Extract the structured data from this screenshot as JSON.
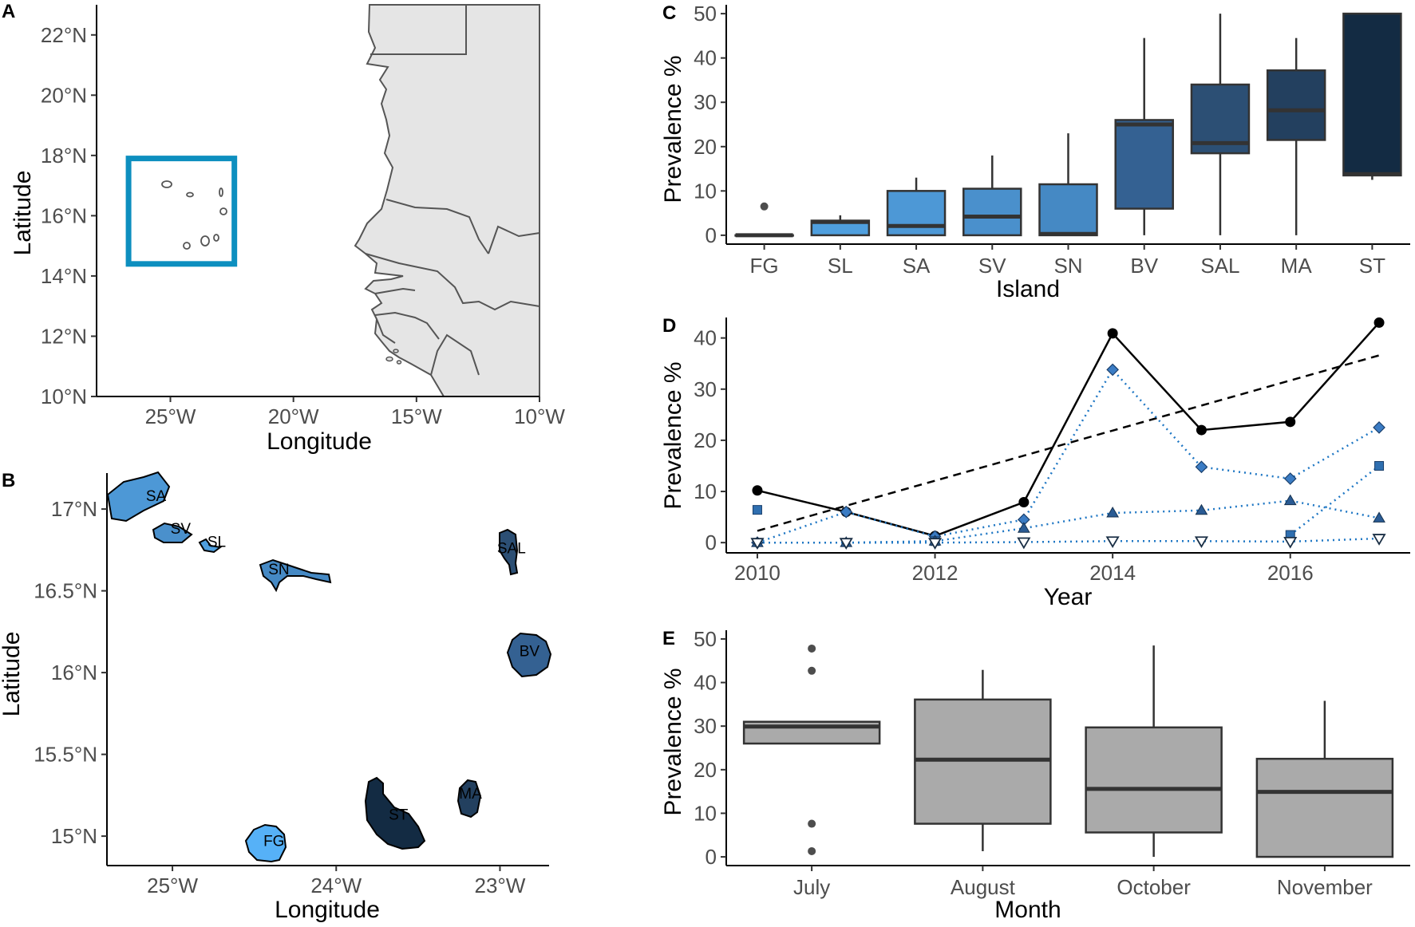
{
  "colors": {
    "FG": "#56b1f7",
    "SL": "#4f9fde",
    "SA": "#4d98d6",
    "SV": "#4a90cc",
    "SN": "#4589c4",
    "BV": "#346192",
    "SAL": "#2c4f74",
    "MA": "#23405f",
    "ST": "#132b43",
    "land": "#e5e5e5",
    "border": "#555555",
    "box_frame": "#0d8fbf",
    "month_fill": "#aaaaaa",
    "trend_line": "#000000",
    "series_blue": "#1f77c4"
  },
  "chart_data": [
    {
      "panel": "A",
      "type": "map",
      "xlabel": "Longitude",
      "ylabel": "Latitude",
      "xlim": [
        -28,
        -10
      ],
      "ylim": [
        10,
        23
      ],
      "xticks": [
        {
          "v": -25,
          "label": "25°W"
        },
        {
          "v": -20,
          "label": "20°W"
        },
        {
          "v": -15,
          "label": "15°W"
        },
        {
          "v": -10,
          "label": "10°W"
        }
      ],
      "yticks": [
        {
          "v": 10,
          "label": "10°N"
        },
        {
          "v": 12,
          "label": "12°N"
        },
        {
          "v": 14,
          "label": "14°N"
        },
        {
          "v": 16,
          "label": "16°N"
        },
        {
          "v": 18,
          "label": "18°N"
        },
        {
          "v": 20,
          "label": "20°N"
        },
        {
          "v": 22,
          "label": "22°N"
        }
      ],
      "highlight_box": {
        "lon": [
          -26.7,
          -22.4
        ],
        "lat": [
          14.4,
          17.9
        ]
      }
    },
    {
      "panel": "B",
      "type": "map",
      "xlabel": "Longitude",
      "ylabel": "Latitude",
      "xlim": [
        -25.4,
        -22.7
      ],
      "ylim": [
        14.82,
        17.22
      ],
      "xticks": [
        {
          "v": -25,
          "label": "25°W"
        },
        {
          "v": -24,
          "label": "24°W"
        },
        {
          "v": -23,
          "label": "23°W"
        }
      ],
      "yticks": [
        {
          "v": 15,
          "label": "15°N"
        },
        {
          "v": 15.5,
          "label": "15.5°N"
        },
        {
          "v": 16,
          "label": "16°N"
        },
        {
          "v": 16.5,
          "label": "16.5°N"
        },
        {
          "v": 17,
          "label": "17°N"
        }
      ],
      "islands": [
        {
          "code": "SA",
          "label": "SA",
          "lon": -25.1,
          "lat": 17.05
        },
        {
          "code": "SV",
          "label": "SV",
          "lon": -24.95,
          "lat": 16.85
        },
        {
          "code": "SL",
          "label": "SL",
          "lon": -24.73,
          "lat": 16.77
        },
        {
          "code": "SN",
          "label": "SN",
          "lon": -24.35,
          "lat": 16.6
        },
        {
          "code": "SAL",
          "label": "SAL",
          "lon": -22.93,
          "lat": 16.73
        },
        {
          "code": "BV",
          "label": "BV",
          "lon": -22.82,
          "lat": 16.1
        },
        {
          "code": "MA",
          "label": "MA",
          "lon": -23.18,
          "lat": 15.23
        },
        {
          "code": "ST",
          "label": "ST",
          "lon": -23.62,
          "lat": 15.1
        },
        {
          "code": "FG",
          "label": "FG",
          "lon": -24.38,
          "lat": 14.94
        }
      ]
    },
    {
      "panel": "C",
      "type": "boxplot",
      "xlabel": "Island",
      "ylabel": "Prevalence %",
      "ylim": [
        -2,
        52
      ],
      "yticks": [
        0,
        10,
        20,
        30,
        40,
        50
      ],
      "categories": [
        "FG",
        "SL",
        "SA",
        "SV",
        "SN",
        "BV",
        "SAL",
        "MA",
        "ST"
      ],
      "boxes": [
        {
          "min": 0,
          "q1": 0,
          "median": 0,
          "q3": 0,
          "max": 0,
          "outliers": [
            6.5
          ]
        },
        {
          "min": 0,
          "q1": 0,
          "median": 3,
          "q3": 3.3,
          "max": 4.5,
          "outliers": []
        },
        {
          "min": 0,
          "q1": 0,
          "median": 2.1,
          "q3": 10,
          "max": 13,
          "outliers": []
        },
        {
          "min": 0,
          "q1": 0,
          "median": 4.2,
          "q3": 10.5,
          "max": 18,
          "outliers": []
        },
        {
          "min": 0,
          "q1": 0,
          "median": 0.3,
          "q3": 11.5,
          "max": 23,
          "outliers": []
        },
        {
          "min": 0,
          "q1": 6,
          "median": 25,
          "q3": 26,
          "max": 44.5,
          "outliers": []
        },
        {
          "min": 0,
          "q1": 18.5,
          "median": 20.8,
          "q3": 34,
          "max": 50,
          "outliers": []
        },
        {
          "min": 0,
          "q1": 21.5,
          "median": 28.2,
          "q3": 37.2,
          "max": 44.5,
          "outliers": []
        },
        {
          "min": 12.5,
          "q1": 13.5,
          "median": 13.8,
          "q3": 50,
          "max": 50,
          "outliers": []
        }
      ]
    },
    {
      "panel": "D",
      "type": "line",
      "xlabel": "Year",
      "ylabel": "Prevalence %",
      "xlim": [
        2009.65,
        2017.35
      ],
      "ylim": [
        -2,
        44
      ],
      "xticks": [
        2010,
        2012,
        2014,
        2016
      ],
      "yticks": [
        0,
        10,
        20,
        30,
        40
      ],
      "series": [
        {
          "name": "overall",
          "style": "solid",
          "marker": "circle",
          "x": [
            2010,
            2011,
            2012,
            2013,
            2014,
            2015,
            2016,
            2017
          ],
          "values": [
            10.2,
            6,
            1.3,
            7.9,
            40.9,
            22,
            23.6,
            43
          ]
        },
        {
          "name": "trend",
          "style": "dashed",
          "marker": "none",
          "x": [
            2010,
            2017
          ],
          "values": [
            2.3,
            36.6
          ]
        },
        {
          "name": "diamond",
          "style": "dotted",
          "marker": "diamond",
          "x": [
            2010,
            2011,
            2012,
            2013,
            2014,
            2015,
            2016,
            2017
          ],
          "values": [
            0,
            6,
            1.2,
            4.5,
            33.8,
            14.8,
            12.5,
            22.5
          ]
        },
        {
          "name": "square",
          "style": "none",
          "marker": "square",
          "x": [
            2010,
            2012,
            2016,
            2017
          ],
          "values": [
            6.4,
            0.3,
            1.5,
            15
          ]
        },
        {
          "name": "square-line",
          "style": "dotted",
          "marker": "none",
          "x": [
            2016,
            2017
          ],
          "values": [
            1.5,
            15
          ]
        },
        {
          "name": "triangle",
          "style": "dotted",
          "marker": "triangle",
          "x": [
            2010,
            2011,
            2012,
            2013,
            2014,
            2015,
            2016,
            2017
          ],
          "values": [
            0,
            0,
            0.3,
            2.8,
            5.8,
            6.3,
            8.2,
            4.8
          ]
        },
        {
          "name": "triangle-down",
          "style": "dotted",
          "marker": "triangle-down",
          "x": [
            2010,
            2011,
            2012,
            2013,
            2014,
            2015,
            2016,
            2017
          ],
          "values": [
            0,
            0,
            0,
            0.1,
            0.3,
            0.3,
            0.2,
            0.8
          ]
        }
      ]
    },
    {
      "panel": "E",
      "type": "boxplot",
      "xlabel": "Month",
      "ylabel": "Prevalence %",
      "ylim": [
        -2,
        52
      ],
      "yticks": [
        0,
        10,
        20,
        30,
        40,
        50
      ],
      "categories": [
        "July",
        "August",
        "October",
        "November"
      ],
      "boxes": [
        {
          "min": 26,
          "q1": 26,
          "median": 29.9,
          "q3": 31,
          "max": 31,
          "outliers": [
            47.8,
            42.7,
            7.6,
            1.3
          ]
        },
        {
          "min": 1.3,
          "q1": 7.6,
          "median": 22.3,
          "q3": 36.1,
          "max": 42.9,
          "outliers": []
        },
        {
          "min": 0,
          "q1": 5.6,
          "median": 15.6,
          "q3": 29.7,
          "max": 48.5,
          "outliers": []
        },
        {
          "min": 0,
          "q1": 0,
          "median": 14.9,
          "q3": 22.5,
          "max": 35.8,
          "outliers": []
        }
      ]
    }
  ]
}
